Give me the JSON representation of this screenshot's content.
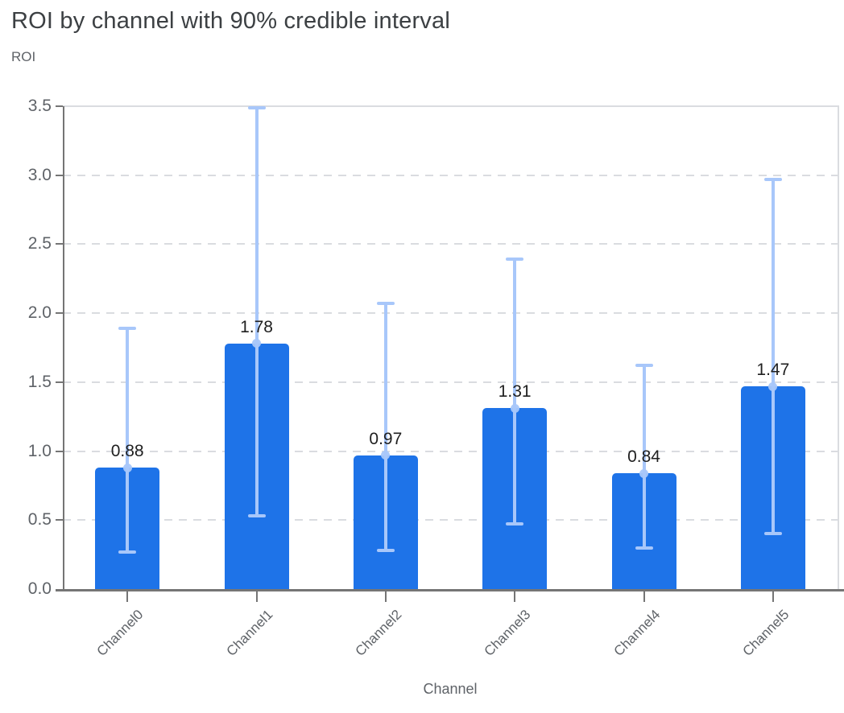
{
  "chart": {
    "title": "ROI by channel with 90% credible interval",
    "ylabel": "ROI",
    "xlabel": "Channel"
  },
  "chart_data": {
    "type": "bar",
    "title": "ROI by channel with 90% credible interval",
    "xlabel": "Channel",
    "ylabel": "ROI",
    "categories": [
      "Channel0",
      "Channel1",
      "Channel2",
      "Channel3",
      "Channel4",
      "Channel5"
    ],
    "values": [
      0.88,
      1.78,
      0.97,
      1.31,
      0.84,
      1.47
    ],
    "data_labels": [
      "0.88",
      "1.78",
      "0.97",
      "1.31",
      "0.84",
      "1.47"
    ],
    "error_interval": "90% credible interval",
    "ci_lower": [
      0.27,
      0.53,
      0.28,
      0.47,
      0.3,
      0.4
    ],
    "ci_upper": [
      1.89,
      3.49,
      2.07,
      2.39,
      1.62,
      2.97
    ],
    "ylim": [
      0,
      3.5
    ],
    "yticks": [
      0.0,
      0.5,
      1.0,
      1.5,
      2.0,
      2.5,
      3.0,
      3.5
    ],
    "ytick_labels": [
      "0.0",
      "0.5",
      "1.0",
      "1.5",
      "2.0",
      "2.5",
      "3.0",
      "3.5"
    ],
    "grid": "horizontal-dashed",
    "legend": "none",
    "colors": {
      "bar": "#1E73E8",
      "error_bar": "#A8C7FA",
      "data_label": "#1F1F1F",
      "axis": "#757575",
      "grid_line": "#DADCE0",
      "tick_label": "#5F6368",
      "title": "#3C4043"
    }
  }
}
